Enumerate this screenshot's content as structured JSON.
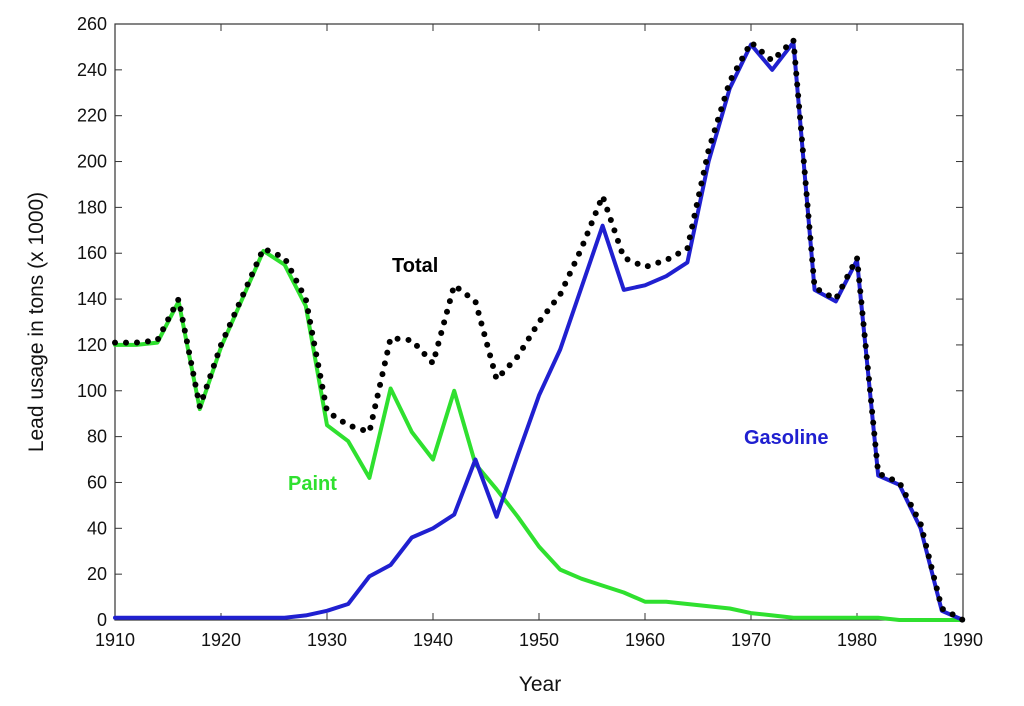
{
  "chart_data": {
    "type": "line",
    "xlabel": "Year",
    "ylabel": "Lead usage in tons (x 1000)",
    "xlim": [
      1910,
      1990
    ],
    "ylim": [
      0,
      260
    ],
    "xticks": [
      1910,
      1920,
      1930,
      1940,
      1950,
      1960,
      1970,
      1980,
      1990
    ],
    "yticks": [
      0,
      20,
      40,
      60,
      80,
      100,
      120,
      140,
      160,
      180,
      200,
      220,
      240,
      260
    ],
    "grid": false,
    "series": [
      {
        "name": "Total",
        "color": "#000000",
        "style": "dotted",
        "points": [
          [
            1910,
            121
          ],
          [
            1912,
            121
          ],
          [
            1914,
            122
          ],
          [
            1916,
            140
          ],
          [
            1918,
            93
          ],
          [
            1920,
            120
          ],
          [
            1922,
            141
          ],
          [
            1924,
            162
          ],
          [
            1926,
            158
          ],
          [
            1928,
            140
          ],
          [
            1930,
            91
          ],
          [
            1932,
            85
          ],
          [
            1934,
            82
          ],
          [
            1936,
            123
          ],
          [
            1938,
            122
          ],
          [
            1940,
            112
          ],
          [
            1942,
            146
          ],
          [
            1944,
            139
          ],
          [
            1946,
            105
          ],
          [
            1948,
            115
          ],
          [
            1950,
            130
          ],
          [
            1952,
            142
          ],
          [
            1954,
            162
          ],
          [
            1956,
            185
          ],
          [
            1958,
            158
          ],
          [
            1960,
            154
          ],
          [
            1962,
            157
          ],
          [
            1964,
            162
          ],
          [
            1966,
            205
          ],
          [
            1968,
            235
          ],
          [
            1970,
            252
          ],
          [
            1972,
            244
          ],
          [
            1974,
            253
          ],
          [
            1976,
            145
          ],
          [
            1978,
            140
          ],
          [
            1980,
            158
          ],
          [
            1982,
            64
          ],
          [
            1984,
            60
          ],
          [
            1986,
            42
          ],
          [
            1988,
            5
          ],
          [
            1990,
            0
          ]
        ],
        "label": "Total"
      },
      {
        "name": "Paint",
        "color": "#2fe02f",
        "style": "solid",
        "points": [
          [
            1910,
            120
          ],
          [
            1912,
            120
          ],
          [
            1914,
            121
          ],
          [
            1916,
            139
          ],
          [
            1918,
            92
          ],
          [
            1920,
            119
          ],
          [
            1922,
            140
          ],
          [
            1924,
            161
          ],
          [
            1926,
            155
          ],
          [
            1928,
            137
          ],
          [
            1930,
            85
          ],
          [
            1932,
            78
          ],
          [
            1934,
            62
          ],
          [
            1936,
            101
          ],
          [
            1938,
            82
          ],
          [
            1940,
            70
          ],
          [
            1942,
            100
          ],
          [
            1944,
            68
          ],
          [
            1946,
            57
          ],
          [
            1948,
            45
          ],
          [
            1950,
            32
          ],
          [
            1952,
            22
          ],
          [
            1954,
            18
          ],
          [
            1956,
            15
          ],
          [
            1958,
            12
          ],
          [
            1960,
            8
          ],
          [
            1962,
            8
          ],
          [
            1964,
            7
          ],
          [
            1966,
            6
          ],
          [
            1968,
            5
          ],
          [
            1970,
            3
          ],
          [
            1972,
            2
          ],
          [
            1974,
            1
          ],
          [
            1976,
            1
          ],
          [
            1978,
            1
          ],
          [
            1980,
            1
          ],
          [
            1982,
            1
          ],
          [
            1984,
            0
          ],
          [
            1986,
            0
          ],
          [
            1988,
            0
          ],
          [
            1990,
            0
          ]
        ],
        "label": "Paint"
      },
      {
        "name": "Gasoline",
        "color": "#2020d0",
        "style": "solid",
        "points": [
          [
            1910,
            1
          ],
          [
            1912,
            1
          ],
          [
            1914,
            1
          ],
          [
            1916,
            1
          ],
          [
            1918,
            1
          ],
          [
            1920,
            1
          ],
          [
            1922,
            1
          ],
          [
            1924,
            1
          ],
          [
            1926,
            1
          ],
          [
            1928,
            2
          ],
          [
            1930,
            4
          ],
          [
            1932,
            7
          ],
          [
            1934,
            19
          ],
          [
            1936,
            24
          ],
          [
            1938,
            36
          ],
          [
            1940,
            40
          ],
          [
            1942,
            46
          ],
          [
            1944,
            70
          ],
          [
            1946,
            45
          ],
          [
            1948,
            72
          ],
          [
            1950,
            98
          ],
          [
            1952,
            118
          ],
          [
            1954,
            145
          ],
          [
            1956,
            172
          ],
          [
            1958,
            144
          ],
          [
            1960,
            146
          ],
          [
            1962,
            150
          ],
          [
            1964,
            156
          ],
          [
            1966,
            200
          ],
          [
            1968,
            232
          ],
          [
            1970,
            251
          ],
          [
            1972,
            240
          ],
          [
            1974,
            252
          ],
          [
            1976,
            144
          ],
          [
            1978,
            139
          ],
          [
            1980,
            157
          ],
          [
            1982,
            63
          ],
          [
            1984,
            59
          ],
          [
            1986,
            40
          ],
          [
            1988,
            4
          ],
          [
            1990,
            0
          ]
        ],
        "label": "Gasoline"
      }
    ]
  }
}
